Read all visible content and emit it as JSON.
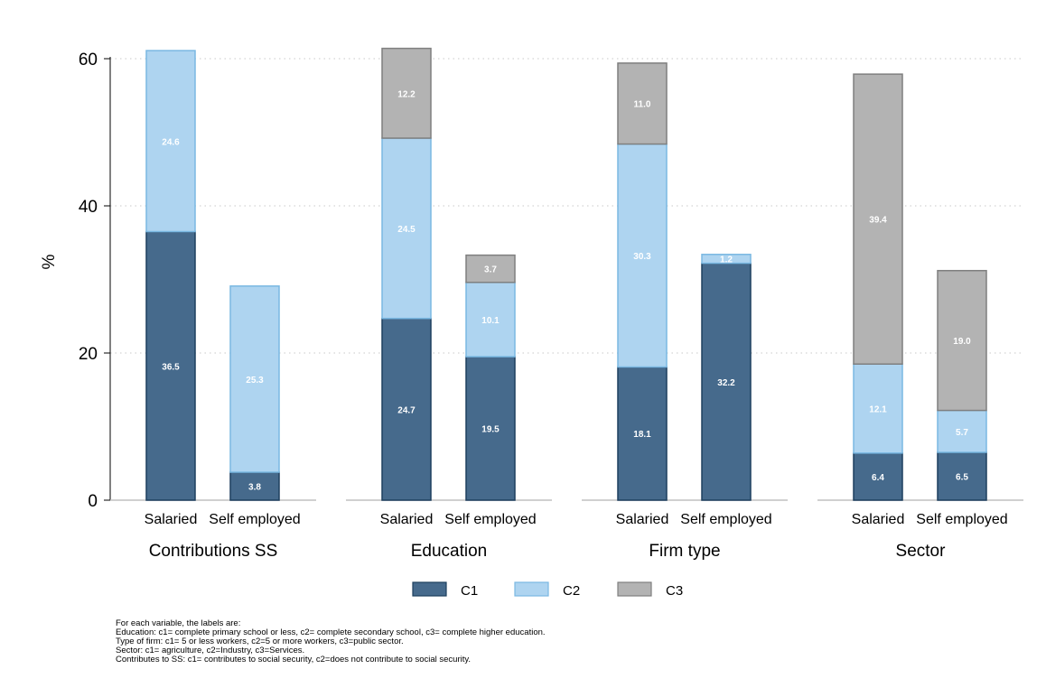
{
  "chart_data": {
    "type": "bar",
    "stacked": true,
    "ylabel": "%",
    "ylim": [
      0,
      60
    ],
    "yticks": [
      0,
      20,
      40,
      60
    ],
    "grid": true,
    "legend_position": "bottom",
    "groups": [
      {
        "name": "Contributions SS",
        "bars": [
          {
            "label": "Salaried",
            "values": [
              36.5,
              24.6,
              null
            ]
          },
          {
            "label": "Self employed",
            "values": [
              3.8,
              25.3,
              null
            ]
          }
        ]
      },
      {
        "name": "Education",
        "bars": [
          {
            "label": "Salaried",
            "values": [
              24.7,
              24.5,
              12.2
            ]
          },
          {
            "label": "Self employed",
            "values": [
              19.5,
              10.1,
              3.7
            ]
          }
        ]
      },
      {
        "name": "Firm type",
        "bars": [
          {
            "label": "Salaried",
            "values": [
              18.1,
              30.3,
              11.0
            ]
          },
          {
            "label": "Self employed",
            "values": [
              32.2,
              1.2,
              null
            ]
          }
        ]
      },
      {
        "name": "Sector",
        "bars": [
          {
            "label": "Salaried",
            "values": [
              6.4,
              12.1,
              39.4
            ]
          },
          {
            "label": "Self employed",
            "values": [
              6.5,
              5.7,
              19.0
            ]
          }
        ]
      }
    ],
    "series": [
      {
        "name": "C1",
        "color": "#466a8c",
        "stroke": "#1d3f5e"
      },
      {
        "name": "C2",
        "color": "#aed4f0",
        "stroke": "#7ab8e2"
      },
      {
        "name": "C3",
        "color": "#b3b3b3",
        "stroke": "#7f7f7f"
      }
    ]
  },
  "notes": [
    "For each variable, the labels are:",
    "Education: c1= complete primary school or less, c2= complete secondary school, c3= complete higher education.",
    "Type of firm: c1= 5 or less workers, c2=5 or more workers, c3=public sector.",
    "Sector: c1= agriculture, c2=Industry, c3=Services.",
    "Contributes to SS: c1= contributes to social security, c2=does not contribute to social security."
  ]
}
